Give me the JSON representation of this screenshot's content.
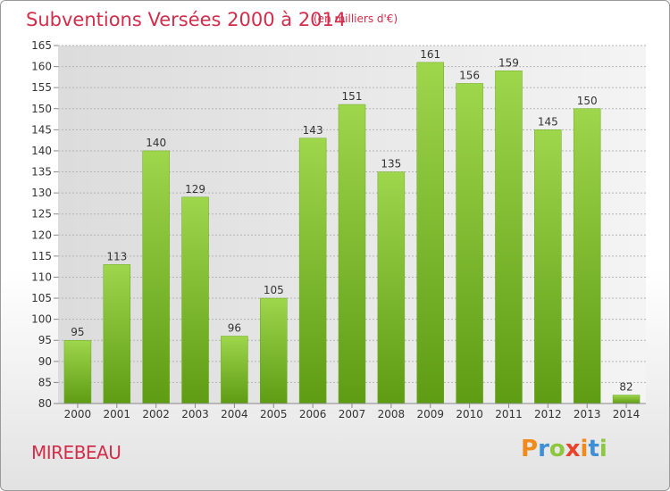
{
  "title": "Subventions Versées 2000 à 2014",
  "subtitle": "(en milliers d'€)",
  "place": "MIREBEAU",
  "logo": {
    "letters": [
      "P",
      "r",
      "o",
      "x",
      "i",
      "t",
      "i"
    ],
    "colors": [
      "#f08a1c",
      "#3d8fd6",
      "#8dc63f",
      "#e8442b",
      "#f08a1c",
      "#3d8fd6",
      "#8dc63f"
    ]
  },
  "chart_data": {
    "type": "bar",
    "categories": [
      "2000",
      "2001",
      "2002",
      "2003",
      "2004",
      "2005",
      "2006",
      "2007",
      "2008",
      "2009",
      "2010",
      "2011",
      "2012",
      "2013",
      "2014"
    ],
    "values": [
      95,
      113,
      140,
      129,
      96,
      105,
      143,
      151,
      135,
      161,
      156,
      159,
      145,
      150,
      82
    ],
    "ylim": [
      80,
      165
    ],
    "yticks": [
      80,
      85,
      90,
      95,
      100,
      105,
      110,
      115,
      120,
      125,
      130,
      135,
      140,
      145,
      150,
      155,
      160,
      165
    ],
    "grid": true,
    "bar_color": "#7fbf2a"
  }
}
